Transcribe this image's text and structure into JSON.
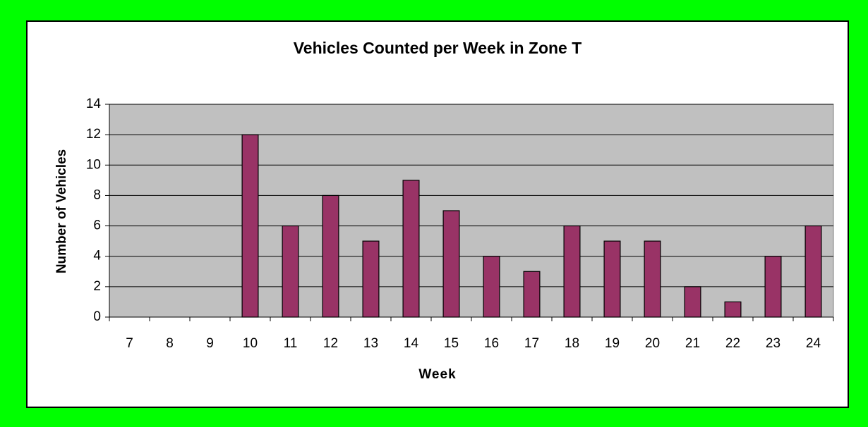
{
  "chart_data": {
    "type": "bar",
    "title": "Vehicles Counted per Week in Zone T",
    "x_label": "Week",
    "y_label": "Number of Vehicles",
    "categories": [
      "7",
      "8",
      "9",
      "10",
      "11",
      "12",
      "13",
      "14",
      "15",
      "16",
      "17",
      "18",
      "19",
      "20",
      "21",
      "22",
      "23",
      "24"
    ],
    "values": [
      0,
      0,
      0,
      12,
      6,
      8,
      5,
      9,
      7,
      4,
      3,
      6,
      5,
      5,
      2,
      1,
      4,
      6
    ],
    "color": "#993366",
    "plot_background": "#c0c0c0",
    "page_background": "#00ff00",
    "ylim": [
      0,
      14
    ],
    "yticks": [
      0,
      2,
      4,
      6,
      8,
      10,
      12,
      14
    ],
    "grid": true
  }
}
